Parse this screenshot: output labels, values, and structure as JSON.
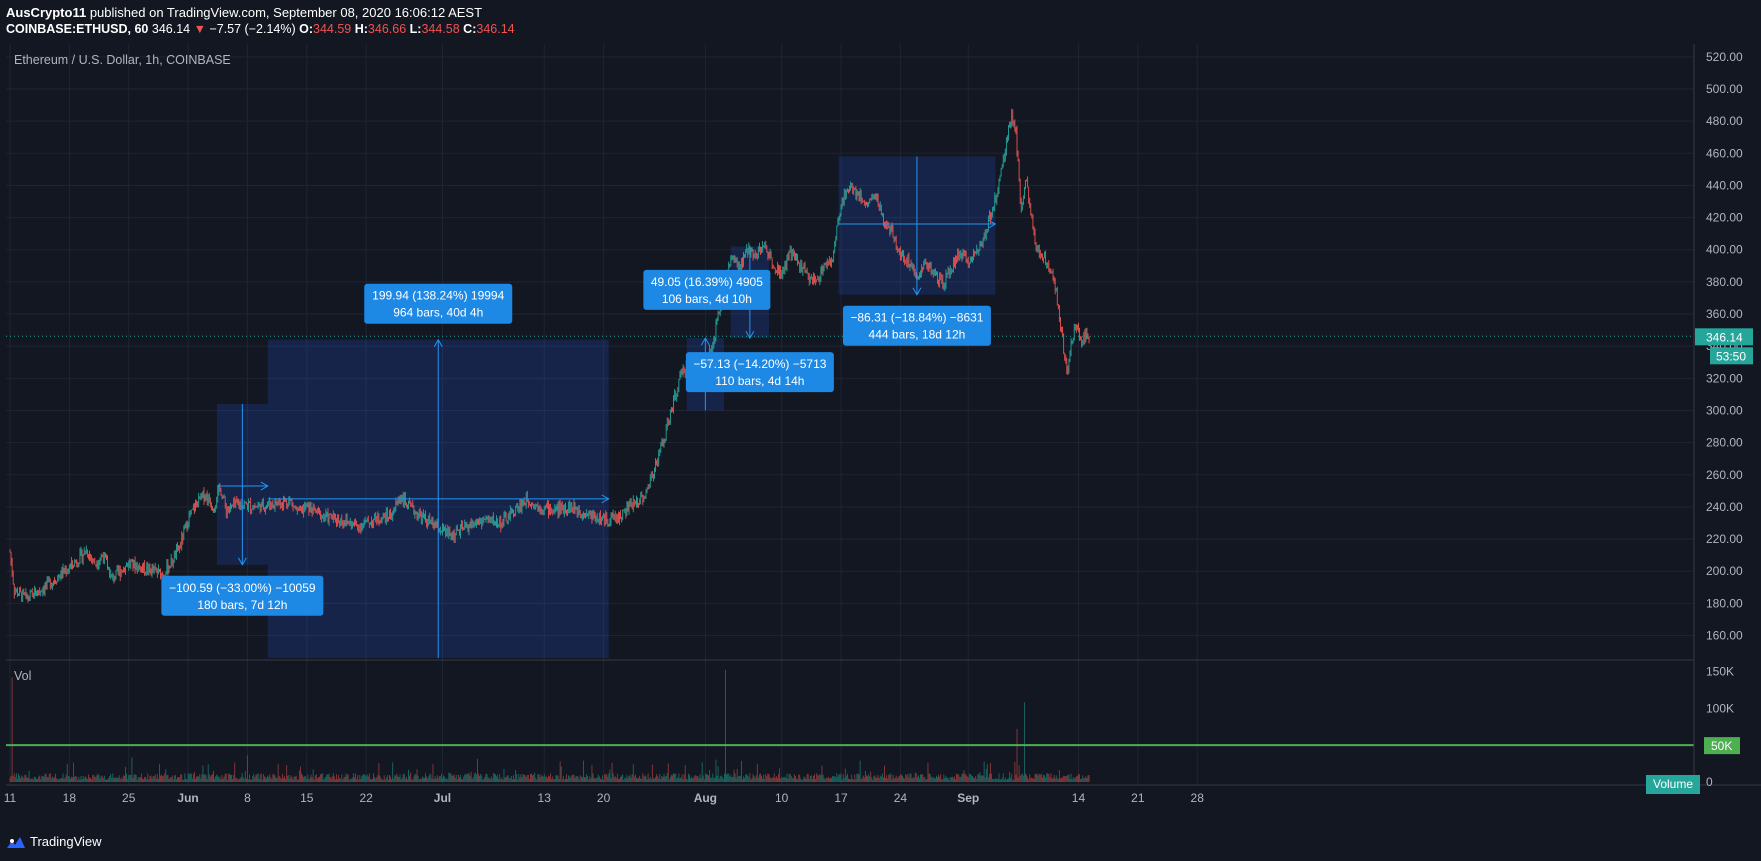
{
  "header": {
    "publisher": "AusCrypto11",
    "published_text": "published on TradingView.com, September 08, 2020 16:06:12 AEST",
    "symbol": "COINBASE:ETHUSD, 60",
    "last": "346.14",
    "change": "−7.57 (−2.14%)",
    "o_label": "O:",
    "o": "344.59",
    "h_label": "H:",
    "h": "346.66",
    "l_label": "L:",
    "l": "344.58",
    "c_label": "C:",
    "c": "346.14"
  },
  "chart_data": {
    "type": "candlestick",
    "title": "Ethereum / U.S. Dollar, 1h, COINBASE",
    "price_axis": {
      "ticks": [
        "520.00",
        "500.00",
        "480.00",
        "460.00",
        "440.00",
        "420.00",
        "400.00",
        "380.00",
        "360.00",
        "340.00",
        "320.00",
        "300.00",
        "280.00",
        "260.00",
        "240.00",
        "220.00",
        "200.00",
        "180.00",
        "160.00"
      ],
      "ylim": [
        146,
        528
      ]
    },
    "current_price_label": "346.14",
    "countdown_label": "53:50",
    "time_axis": {
      "ticks": [
        {
          "label": "11",
          "day": 0
        },
        {
          "label": "18",
          "day": 7
        },
        {
          "label": "25",
          "day": 14
        },
        {
          "label": "Jun",
          "day": 21,
          "bold": true
        },
        {
          "label": "8",
          "day": 28
        },
        {
          "label": "15",
          "day": 35
        },
        {
          "label": "22",
          "day": 42
        },
        {
          "label": "Jul",
          "day": 51,
          "bold": true
        },
        {
          "label": "13",
          "day": 63
        },
        {
          "label": "20",
          "day": 70
        },
        {
          "label": "Aug",
          "day": 82,
          "bold": true
        },
        {
          "label": "10",
          "day": 91
        },
        {
          "label": "17",
          "day": 98
        },
        {
          "label": "24",
          "day": 105
        },
        {
          "label": "Sep",
          "day": 113,
          "bold": true
        },
        {
          "label": "14",
          "day": 126
        },
        {
          "label": "21",
          "day": 133
        },
        {
          "label": "28",
          "day": 140
        }
      ]
    },
    "price_path": [
      [
        0,
        212
      ],
      [
        0.5,
        188
      ],
      [
        2,
        183
      ],
      [
        4,
        190
      ],
      [
        6,
        198
      ],
      [
        8,
        207
      ],
      [
        9,
        213
      ],
      [
        10,
        205
      ],
      [
        11,
        210
      ],
      [
        12,
        195
      ],
      [
        13,
        200
      ],
      [
        14,
        205
      ],
      [
        15,
        203
      ],
      [
        17,
        200
      ],
      [
        18,
        198
      ],
      [
        19,
        205
      ],
      [
        20,
        215
      ],
      [
        21,
        232
      ],
      [
        22,
        242
      ],
      [
        23,
        248
      ],
      [
        24,
        240
      ],
      [
        24.8,
        252
      ],
      [
        25.5,
        238
      ],
      [
        27,
        242
      ],
      [
        29,
        240
      ],
      [
        31,
        242
      ],
      [
        33,
        244
      ],
      [
        34,
        236
      ],
      [
        35,
        240
      ],
      [
        37,
        234
      ],
      [
        39,
        232
      ],
      [
        41,
        228
      ],
      [
        43,
        232
      ],
      [
        45,
        235
      ],
      [
        46,
        247
      ],
      [
        47,
        240
      ],
      [
        49,
        232
      ],
      [
        51,
        225
      ],
      [
        52,
        222
      ],
      [
        54,
        228
      ],
      [
        56,
        232
      ],
      [
        58,
        230
      ],
      [
        59,
        235
      ],
      [
        61,
        245
      ],
      [
        62,
        241
      ],
      [
        64,
        238
      ],
      [
        66,
        240
      ],
      [
        68,
        236
      ],
      [
        70,
        232
      ],
      [
        72,
        234
      ],
      [
        73,
        240
      ],
      [
        75,
        248
      ],
      [
        76,
        265
      ],
      [
        77,
        280
      ],
      [
        78,
        300
      ],
      [
        79,
        320
      ],
      [
        80,
        330
      ],
      [
        81,
        322
      ],
      [
        82,
        325
      ],
      [
        83,
        345
      ],
      [
        84,
        372
      ],
      [
        85,
        395
      ],
      [
        86,
        388
      ],
      [
        87,
        400
      ],
      [
        88,
        398
      ],
      [
        89,
        402
      ],
      [
        90,
        392
      ],
      [
        91,
        385
      ],
      [
        92,
        398
      ],
      [
        93,
        392
      ],
      [
        94,
        384
      ],
      [
        95,
        380
      ],
      [
        96,
        390
      ],
      [
        97,
        393
      ],
      [
        98,
        430
      ],
      [
        99,
        440
      ],
      [
        100,
        435
      ],
      [
        101,
        428
      ],
      [
        102,
        435
      ],
      [
        103,
        418
      ],
      [
        104,
        410
      ],
      [
        105,
        398
      ],
      [
        106,
        392
      ],
      [
        107,
        385
      ],
      [
        108,
        392
      ],
      [
        109,
        385
      ],
      [
        110,
        378
      ],
      [
        111,
        388
      ],
      [
        112,
        398
      ],
      [
        113,
        392
      ],
      [
        114,
        400
      ],
      [
        115,
        410
      ],
      [
        116,
        428
      ],
      [
        117,
        450
      ],
      [
        117.6,
        470
      ],
      [
        118.1,
        485
      ],
      [
        118.6,
        475
      ],
      [
        119.2,
        425
      ],
      [
        119.8,
        445
      ],
      [
        120.4,
        420
      ],
      [
        121,
        400
      ],
      [
        122,
        395
      ],
      [
        123,
        385
      ],
      [
        123.6,
        365
      ],
      [
        124.2,
        340
      ],
      [
        124.7,
        325
      ],
      [
        125.2,
        345
      ],
      [
        125.8,
        355
      ],
      [
        126.3,
        340
      ],
      [
        126.8,
        348
      ],
      [
        127.3,
        346.14
      ]
    ],
    "volume_axis": {
      "ticks": [
        "150K",
        "100K",
        "50K",
        "0"
      ],
      "ylim": [
        0,
        160000
      ]
    },
    "volume_panel_label": "Vol",
    "volume_reference_level": 50000,
    "volume_reference_label": "50K",
    "volume_legend": "Volume",
    "measurements": [
      {
        "day_from": 24.4,
        "day_to": 30.4,
        "price_top": 304,
        "price_bottom": 204,
        "line_price": 253,
        "direction": "down",
        "text1": "−100.59 (−33.00%) −10059",
        "text2": "180 bars, 7d 12h"
      },
      {
        "day_from": 30.4,
        "day_to": 70.6,
        "price_top": 344,
        "price_bottom": 144,
        "line_price": 245,
        "direction": "up",
        "text1": "199.94 (138.24%) 19994",
        "text2": "964 bars, 40d 4h"
      },
      {
        "day_from": 79.8,
        "day_to": 84.2,
        "price_top": 345,
        "price_bottom": 300,
        "line_price": 326,
        "direction": "up",
        "text1": "49.05 (16.39%) 4905",
        "text2": "106 bars, 4d 10h"
      },
      {
        "day_from": 85,
        "day_to": 89.5,
        "price_top": 402,
        "price_bottom": 345,
        "line_price": 375,
        "direction": "down",
        "text1": "−57.13 (−14.20%) −5713",
        "text2": "110 bars, 4d 14h"
      },
      {
        "day_from": 97.7,
        "day_to": 116.2,
        "price_top": 458,
        "price_bottom": 372,
        "line_price": 416,
        "direction": "down",
        "text1": "−86.31 (−18.84%) −8631",
        "text2": "444 bars, 18d 12h"
      }
    ]
  },
  "footer": {
    "brand": "TradingView"
  }
}
